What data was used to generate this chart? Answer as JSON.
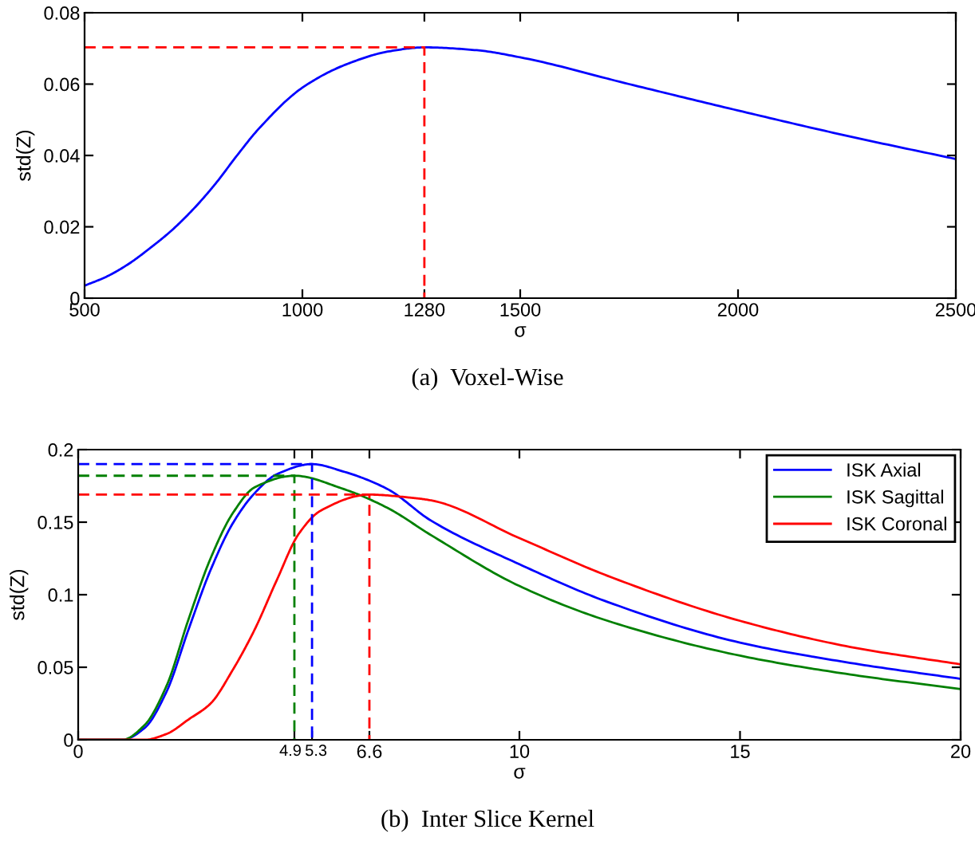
{
  "chart_data": [
    {
      "type": "line",
      "xlabel": "σ",
      "ylabel": "std(Z)",
      "annotations": [
        "(a)  Voxel-Wise"
      ],
      "xlim": [
        500,
        2500
      ],
      "ylim": [
        0,
        0.08
      ],
      "xticks": [
        500,
        1000,
        1280,
        1500,
        2000,
        2500
      ],
      "yticks": [
        0,
        0.02,
        0.04,
        0.06,
        0.08
      ],
      "grid": false,
      "legend": false,
      "series": [
        {
          "color": "#0000ff",
          "line_style": "solid",
          "x": [
            500,
            550,
            600,
            650,
            700,
            750,
            800,
            850,
            900,
            1000,
            1100,
            1200,
            1280,
            1400,
            1500,
            1750,
            2000,
            2250,
            2500
          ],
          "values": [
            0.0035,
            0.006,
            0.0095,
            0.014,
            0.019,
            0.025,
            0.032,
            0.04,
            0.0475,
            0.059,
            0.0655,
            0.0692,
            0.0703,
            0.0695,
            0.0675,
            0.06,
            0.0526,
            0.0455,
            0.039
          ]
        },
        {
          "color": "#ff0000",
          "line_style": "dashed",
          "x": [
            500,
            1280,
            1280
          ],
          "values": [
            0.0703,
            0.0703,
            0
          ]
        }
      ]
    },
    {
      "type": "line",
      "xlabel": "σ",
      "ylabel": "std(Z)",
      "annotations": [
        "(b)  Inter Slice Kernel"
      ],
      "xlim": [
        0,
        20
      ],
      "ylim": [
        0,
        0.2
      ],
      "xticks": [
        0,
        4.9,
        5.3,
        6.6,
        10,
        15,
        20
      ],
      "yticks": [
        0,
        0.05,
        0.1,
        0.15,
        0.2
      ],
      "grid": false,
      "legend": "top right",
      "series": [
        {
          "name": "ISK Axial",
          "color": "#0000ff",
          "line_style": "solid",
          "x": [
            0,
            1,
            1.5,
            2,
            2.5,
            3,
            3.5,
            4,
            4.5,
            5.3,
            6,
            7,
            8,
            10,
            12,
            15,
            17.5,
            20
          ],
          "values": [
            0,
            0,
            0.008,
            0.033,
            0.076,
            0.117,
            0.149,
            0.17,
            0.183,
            0.19,
            0.185,
            0.173,
            0.151,
            0.121,
            0.095,
            0.067,
            0.053,
            0.042
          ]
        },
        {
          "name": "ISK Sagittal",
          "color": "#008000",
          "line_style": "solid",
          "x": [
            0,
            1,
            1.5,
            2,
            2.5,
            3,
            3.5,
            4,
            4.9,
            6,
            7,
            8,
            10,
            12,
            15,
            17.5,
            20
          ],
          "values": [
            0,
            0,
            0.01,
            0.037,
            0.083,
            0.125,
            0.156,
            0.174,
            0.182,
            0.173,
            0.16,
            0.141,
            0.106,
            0.082,
            0.058,
            0.045,
            0.035
          ]
        },
        {
          "name": "ISK Coronal",
          "color": "#ff0000",
          "line_style": "solid",
          "x": [
            0,
            1.5,
            2,
            2.5,
            3,
            3.5,
            4,
            4.5,
            5,
            5.5,
            6.6,
            7.5,
            8,
            10,
            12,
            15,
            17.5,
            20
          ],
          "values": [
            0,
            0,
            0.004,
            0.014,
            0.025,
            0.048,
            0.076,
            0.11,
            0.142,
            0.158,
            0.169,
            0.167,
            0.165,
            0.139,
            0.113,
            0.082,
            0.064,
            0.052
          ]
        },
        {
          "color": "#0000ff",
          "line_style": "dashed",
          "x": [
            0,
            5.3,
            5.3
          ],
          "values": [
            0.19,
            0.19,
            0
          ]
        },
        {
          "color": "#008000",
          "line_style": "dashed",
          "x": [
            0,
            4.9,
            4.9
          ],
          "values": [
            0.182,
            0.182,
            0
          ]
        },
        {
          "color": "#ff0000",
          "line_style": "dashed",
          "x": [
            0,
            6.6,
            6.6
          ],
          "values": [
            0.169,
            0.169,
            0
          ]
        }
      ]
    }
  ]
}
